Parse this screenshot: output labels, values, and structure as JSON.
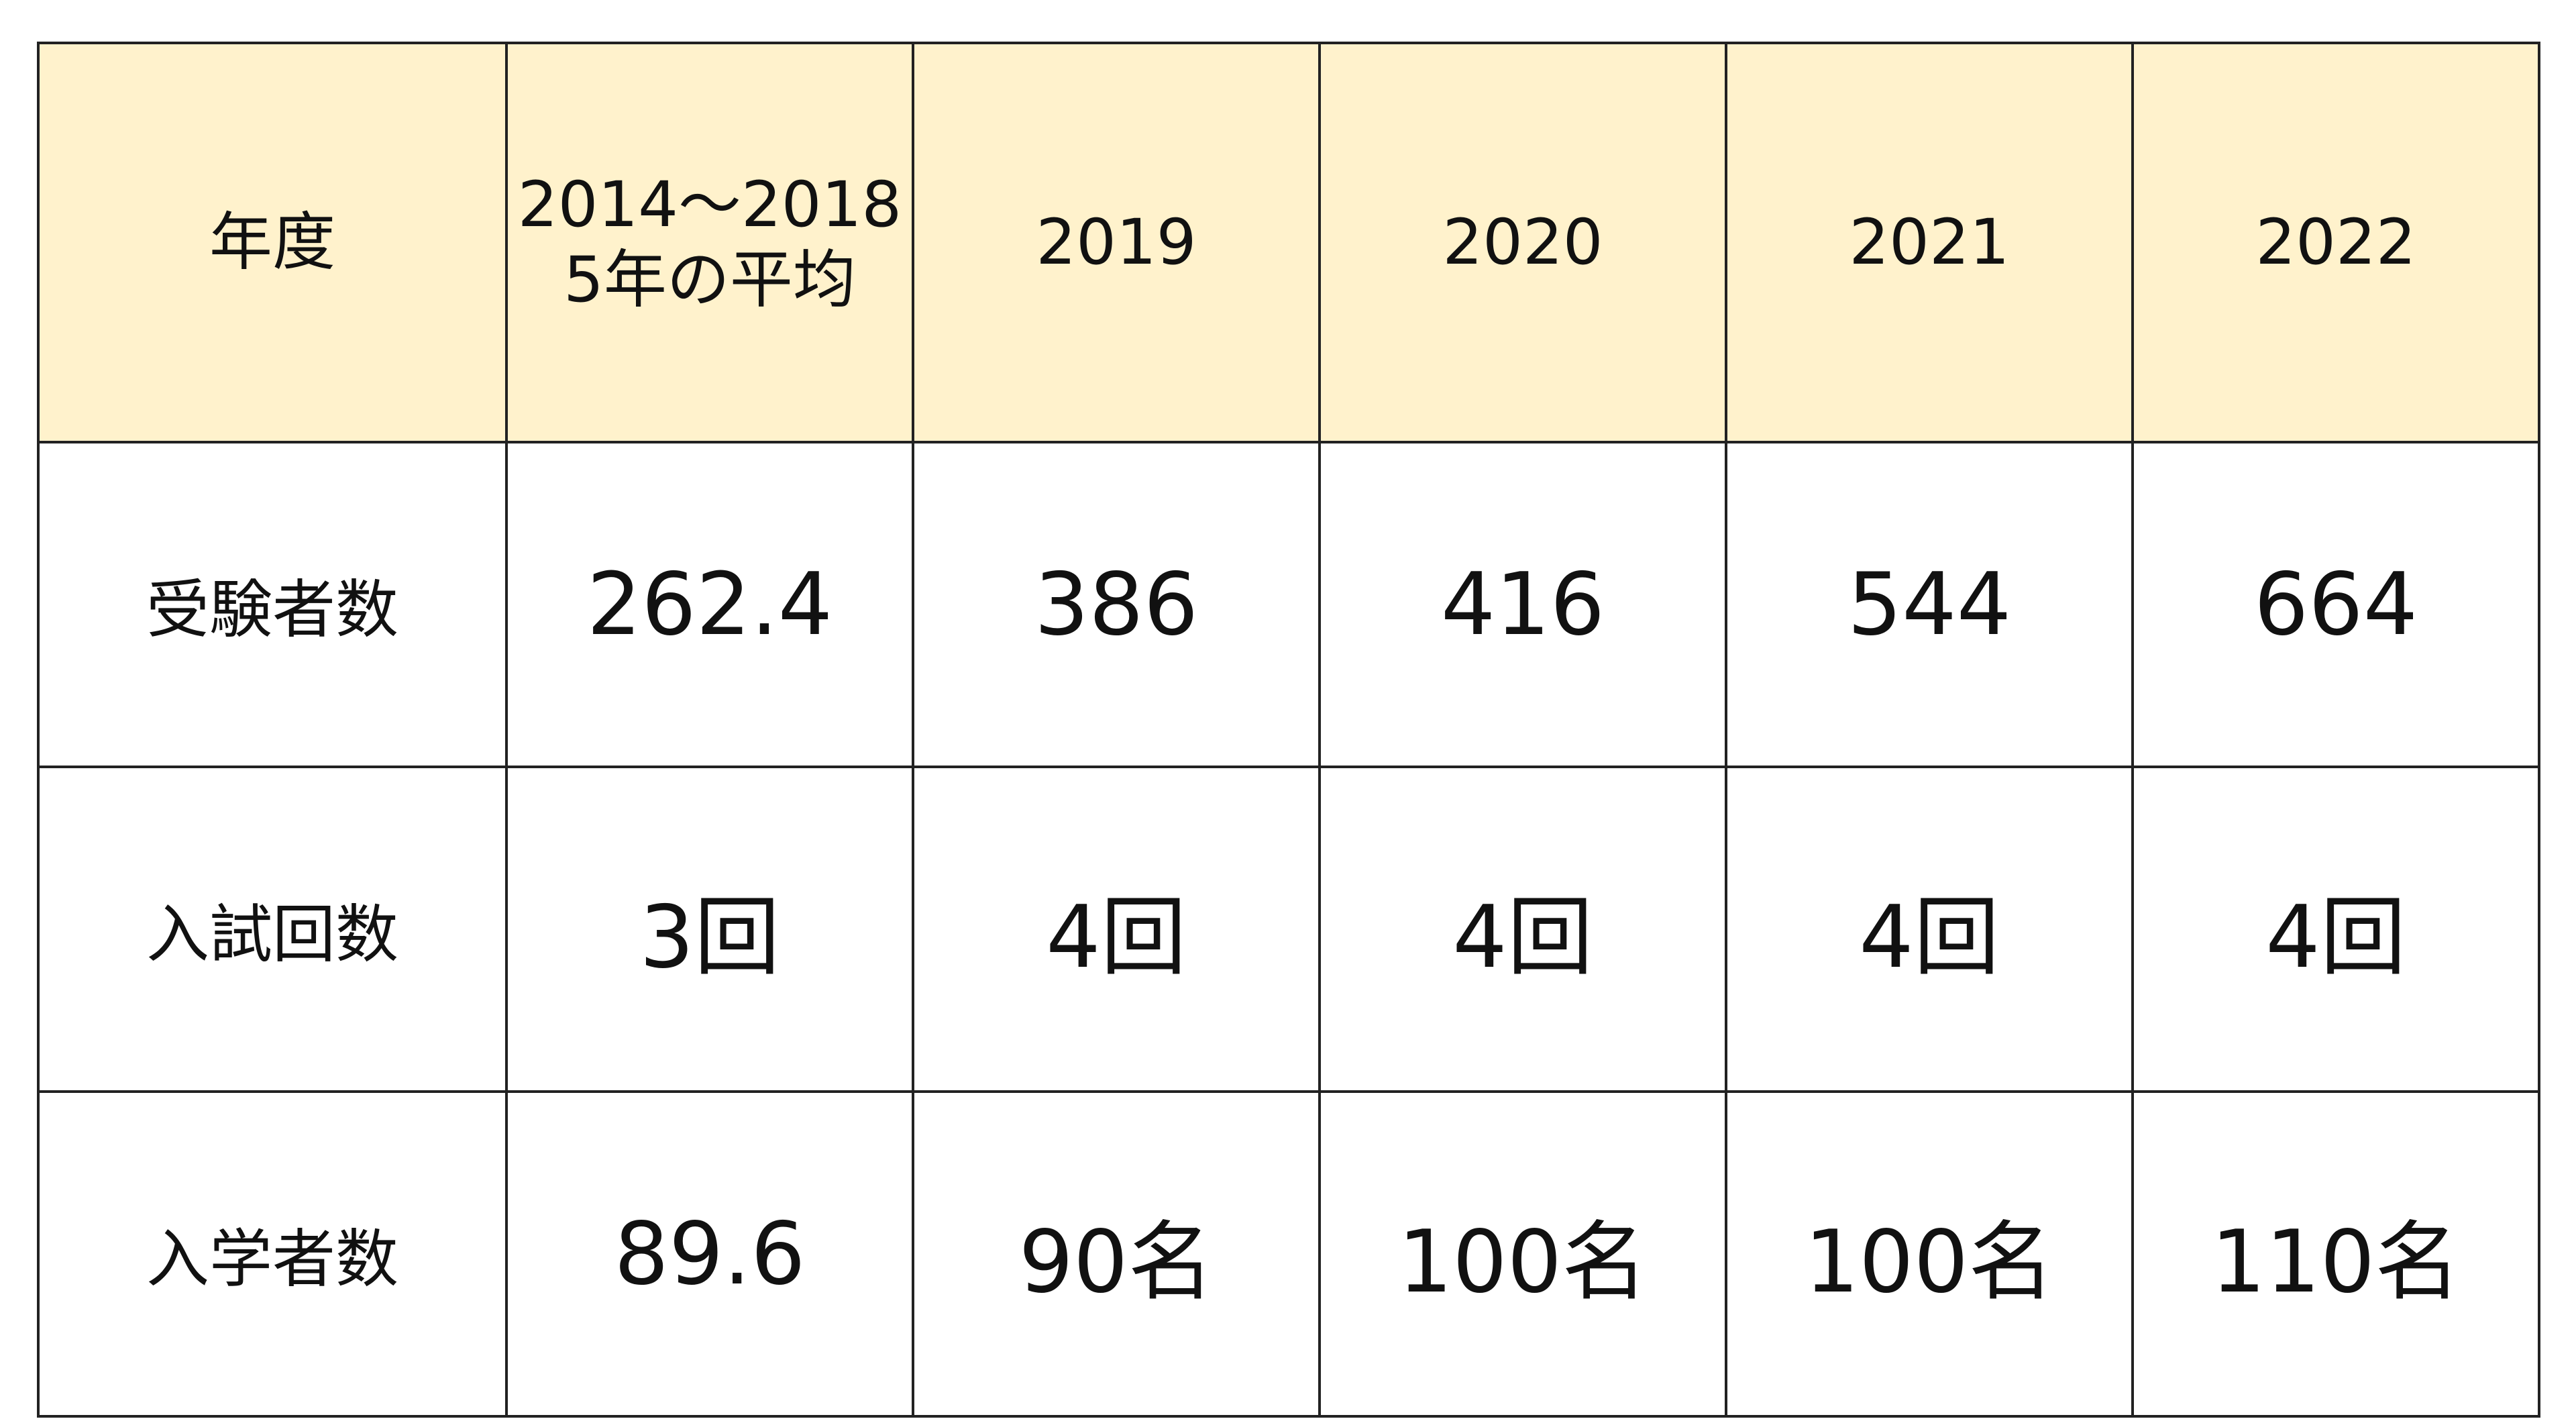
{
  "table": {
    "header": {
      "label": "年度",
      "columns": [
        [
          "2014～2018",
          "5年の平均"
        ],
        [
          "2019"
        ],
        [
          "2020"
        ],
        [
          "2021"
        ],
        [
          "2022"
        ]
      ]
    },
    "rows": [
      {
        "label": "受験者数",
        "values": [
          "262.4",
          "386",
          "416",
          "544",
          "664"
        ]
      },
      {
        "label": "入試回数",
        "values": [
          "3回",
          "4回",
          "4回",
          "4回",
          "4回"
        ]
      },
      {
        "label": "入学者数",
        "values": [
          "89.6",
          "90名",
          "100名",
          "100名",
          "110名"
        ]
      }
    ]
  },
  "colors": {
    "header_background": "#fff2cc",
    "border": "#222222",
    "text": "#111111"
  }
}
